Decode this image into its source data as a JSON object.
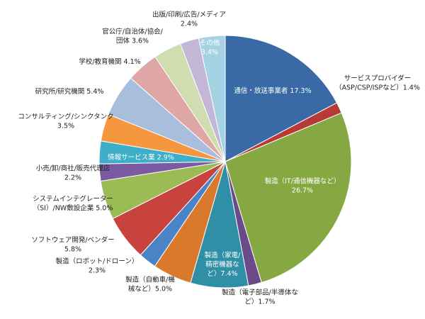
{
  "chart_data": {
    "type": "pie",
    "start": "12 o'clock",
    "direction": "clockwise",
    "slices": [
      {
        "lines": [
          "通信・放送事業者 17.3%"
        ],
        "value": 17.3,
        "color": "#3a6aa5",
        "inside": true
      },
      {
        "lines": [
          "サービスプロバイダー",
          "（ASP/CSP/ISPなど）1.4%"
        ],
        "value": 1.4,
        "color": "#b83a36",
        "inside": false
      },
      {
        "lines": [
          "製造（IT/通信機器など）",
          "26.7%"
        ],
        "value": 26.7,
        "color": "#86a842",
        "inside": true
      },
      {
        "lines": [
          "製造（電子部品/半導体な",
          "ど）1.7%"
        ],
        "value": 1.7,
        "color": "#6b4a8c",
        "inside": false
      },
      {
        "lines": [
          "製造（家電/",
          "精密機器な",
          "ど）7.4%"
        ],
        "value": 7.4,
        "color": "#2e8fa6",
        "inside": true
      },
      {
        "lines": [
          "製造（自動車/機",
          "械など）5.0%"
        ],
        "value": 5.0,
        "color": "#d9792b",
        "inside": false
      },
      {
        "lines": [
          "製造（ロボット/ドローン）",
          "2.3%"
        ],
        "value": 2.3,
        "color": "#4a84c6",
        "inside": false
      },
      {
        "lines": [
          "ソフトウェア開発/ベンダー",
          "5.8%"
        ],
        "value": 5.8,
        "color": "#c8423e",
        "inside": false
      },
      {
        "lines": [
          "システムインテグレーター",
          "（SI）/NW敷設企業 5.0%"
        ],
        "value": 5.0,
        "color": "#9bbb55",
        "inside": false
      },
      {
        "lines": [
          "小売/卸/商社/販売代理店",
          "2.2%"
        ],
        "value": 2.2,
        "color": "#7a5aa0",
        "inside": false
      },
      {
        "lines": [
          "情報サービス業 2.9%"
        ],
        "value": 2.9,
        "color": "#3faec8",
        "inside": true
      },
      {
        "lines": [
          "コンサルティング/シンクタンク",
          "3.5%"
        ],
        "value": 3.5,
        "color": "#f5973f",
        "inside": false
      },
      {
        "lines": [
          "研究所/研究機関 5.4%"
        ],
        "value": 5.4,
        "color": "#a9bedd",
        "inside": false
      },
      {
        "lines": [
          "学校/教育機関 4.1%"
        ],
        "value": 4.1,
        "color": "#dea7a6",
        "inside": false
      },
      {
        "lines": [
          "官公庁/自治体/協会/",
          "団体 3.6%"
        ],
        "value": 3.6,
        "color": "#cfddb0",
        "inside": false
      },
      {
        "lines": [
          "出版/印刷/広告/メディア",
          "2.4%"
        ],
        "value": 2.4,
        "color": "#c3b6d6",
        "inside": false
      },
      {
        "lines": [
          "その他",
          "3.4%"
        ],
        "value": 3.4,
        "color": "#a6d3e3",
        "inside": true
      }
    ]
  }
}
